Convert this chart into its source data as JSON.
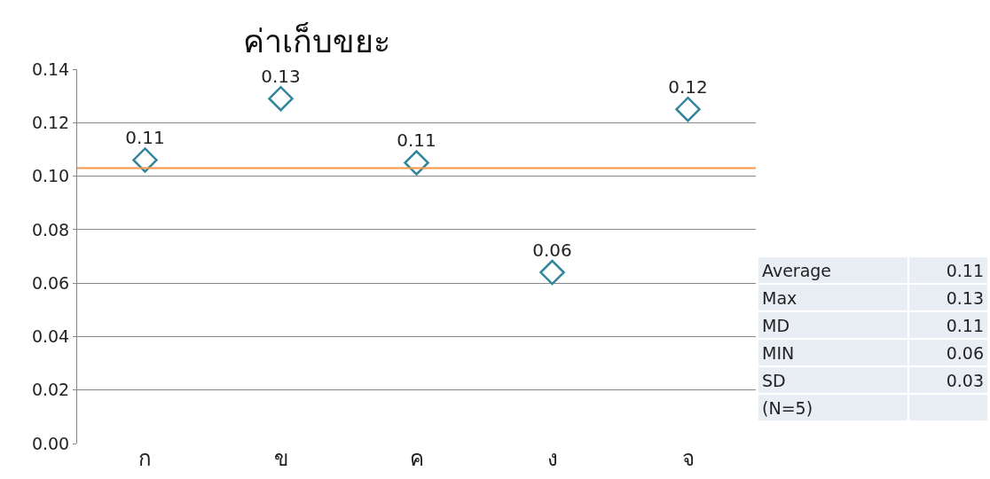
{
  "chart_data": {
    "type": "scatter",
    "title": "ค่าเก็บขยะ",
    "categories": [
      "ก",
      "ข",
      "ค",
      "ง",
      "จ"
    ],
    "values": [
      0.106,
      0.129,
      0.105,
      0.064,
      0.125
    ],
    "value_labels": [
      "0.11",
      "0.13",
      "0.11",
      "0.06",
      "0.12"
    ],
    "color": "#31859c",
    "marker": "diamond",
    "ylim": [
      0,
      0.14
    ],
    "yticks": [
      {
        "value": 0,
        "label": "0.00"
      },
      {
        "value": 0.02,
        "label": "0.02"
      },
      {
        "value": 0.04,
        "label": "0.04"
      },
      {
        "value": 0.06,
        "label": "0.06"
      },
      {
        "value": 0.08,
        "label": "0.08"
      },
      {
        "value": 0.1,
        "label": "0.10"
      },
      {
        "value": 0.12,
        "label": "0.12"
      },
      {
        "value": 0.14,
        "label": "0.14"
      }
    ],
    "grid": "y",
    "ref_lines": [
      {
        "axis": "y",
        "value": 0.103,
        "color": "#f79646"
      }
    ],
    "annotations": [
      "Average",
      "0.11",
      "Max",
      "0.13",
      "MD",
      "0.11",
      "MIN",
      "0.06",
      "SD",
      "0.03",
      "(N=5)"
    ]
  }
}
